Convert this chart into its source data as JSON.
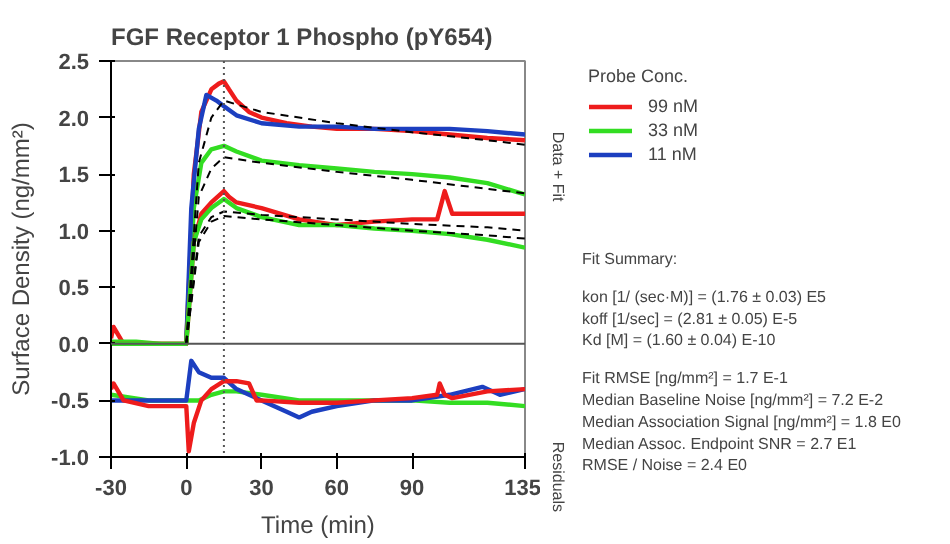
{
  "chart_data": {
    "type": "line",
    "title": "FGF Receptor 1 Phospho (pY654)",
    "xlabel": "Time (min)",
    "ylabel": "Surface Density (ng/mm²)",
    "legend_title": "Probe Conc.",
    "legend": "right",
    "grid": false,
    "marker": "none",
    "xlim": [
      -30,
      135
    ],
    "xticks": [
      -30,
      0,
      30,
      60,
      90,
      135
    ],
    "ylim": [
      -1.0,
      2.5
    ],
    "yticks": [
      {
        "value": -1.0,
        "label": "-1.0"
      },
      -0.5,
      {
        "value": 0,
        "label": "0.0"
      },
      0.5,
      {
        "value": 1.0,
        "label": "1.0"
      },
      1.5,
      {
        "value": 2.0,
        "label": "2.0"
      },
      2.5
    ],
    "series": [
      {
        "name": "99 nM",
        "color": "#ee1c1c",
        "x": [
          -30,
          -29,
          -25,
          -15,
          -5,
          0,
          3,
          6,
          10,
          13,
          15,
          17,
          20,
          25,
          30,
          40,
          50,
          60,
          75,
          90,
          105,
          120,
          135
        ],
        "values": [
          0.05,
          0.15,
          0.0,
          0.0,
          0.0,
          0.0,
          1.5,
          2.05,
          2.25,
          2.3,
          2.32,
          2.25,
          2.15,
          2.05,
          2.0,
          1.95,
          1.92,
          1.9,
          1.9,
          1.88,
          1.85,
          1.82,
          1.8
        ]
      },
      {
        "name": "33 nM",
        "color": "#33dd22",
        "x": [
          -30,
          -20,
          -10,
          0,
          3,
          6,
          10,
          15,
          20,
          30,
          45,
          60,
          75,
          90,
          105,
          120,
          135
        ],
        "values": [
          0.02,
          0.02,
          0.0,
          0.0,
          1.2,
          1.6,
          1.72,
          1.75,
          1.7,
          1.62,
          1.58,
          1.55,
          1.52,
          1.5,
          1.47,
          1.42,
          1.32
        ]
      },
      {
        "name": "11 nM",
        "color": "#1c3fc0",
        "x": [
          0,
          2,
          5,
          8,
          12,
          15,
          20,
          30,
          45,
          60,
          75,
          90,
          105,
          120,
          135
        ],
        "values": [
          0.0,
          1.2,
          1.9,
          2.2,
          2.15,
          2.1,
          2.02,
          1.95,
          1.92,
          1.92,
          1.9,
          1.9,
          1.9,
          1.88,
          1.85
        ]
      },
      {
        "color": "#ee1c1c",
        "x": [
          -30,
          -15,
          0,
          3,
          6,
          10,
          15,
          17,
          20,
          30,
          45,
          60,
          75,
          90,
          100,
          103,
          106,
          110,
          120,
          135
        ],
        "values": [
          0.0,
          0.0,
          0.0,
          0.9,
          1.15,
          1.25,
          1.35,
          1.3,
          1.25,
          1.2,
          1.1,
          1.05,
          1.08,
          1.1,
          1.1,
          1.35,
          1.15,
          1.15,
          1.15,
          1.15
        ]
      },
      {
        "color": "#33dd22",
        "x": [
          -30,
          -15,
          0,
          3,
          6,
          10,
          15,
          20,
          30,
          45,
          60,
          75,
          90,
          105,
          120,
          135
        ],
        "values": [
          0.0,
          0.0,
          0.0,
          0.9,
          1.1,
          1.2,
          1.28,
          1.2,
          1.12,
          1.05,
          1.05,
          1.02,
          1.0,
          0.97,
          0.92,
          0.85
        ]
      },
      {
        "color": "#000000",
        "line_style": "dashed",
        "x": [
          0,
          5,
          10,
          15,
          30,
          60,
          90,
          120,
          135
        ],
        "values": [
          0.0,
          1.6,
          2.0,
          2.15,
          2.05,
          1.95,
          1.87,
          1.8,
          1.76
        ]
      },
      {
        "color": "#000000",
        "line_style": "dashed",
        "x": [
          0,
          5,
          10,
          15,
          30,
          60,
          90,
          120,
          135
        ],
        "values": [
          0.0,
          1.3,
          1.55,
          1.65,
          1.6,
          1.52,
          1.45,
          1.37,
          1.33
        ]
      },
      {
        "color": "#000000",
        "line_style": "dashed",
        "x": [
          0,
          5,
          10,
          15,
          30,
          60,
          90,
          120,
          135
        ],
        "values": [
          0.0,
          0.95,
          1.12,
          1.17,
          1.14,
          1.1,
          1.06,
          1.03,
          1.0
        ]
      },
      {
        "color": "#000000",
        "line_style": "dashed",
        "x": [
          0,
          5,
          10,
          15,
          30,
          60,
          90,
          120,
          135
        ],
        "values": [
          0.0,
          0.9,
          1.08,
          1.13,
          1.1,
          1.05,
          1.0,
          0.96,
          0.93
        ]
      },
      {
        "color": "#33dd22",
        "x": [
          -30,
          -15,
          0,
          5,
          10,
          15,
          20,
          30,
          45,
          60,
          75,
          90,
          105,
          120,
          135
        ],
        "values": [
          -0.45,
          -0.5,
          -0.5,
          -0.5,
          -0.45,
          -0.42,
          -0.42,
          -0.45,
          -0.5,
          -0.5,
          -0.5,
          -0.5,
          -0.52,
          -0.52,
          -0.55
        ]
      },
      {
        "color": "#1c3fc0",
        "x": [
          -30,
          -15,
          0,
          2,
          5,
          10,
          15,
          20,
          30,
          40,
          45,
          50,
          60,
          75,
          90,
          105,
          118,
          125,
          135
        ],
        "values": [
          -0.5,
          -0.5,
          -0.5,
          -0.15,
          -0.25,
          -0.3,
          -0.3,
          -0.4,
          -0.5,
          -0.6,
          -0.65,
          -0.6,
          -0.55,
          -0.5,
          -0.5,
          -0.45,
          -0.38,
          -0.45,
          -0.4
        ]
      },
      {
        "color": "#ee1c1c",
        "x": [
          -30,
          -29,
          -25,
          -15,
          -5,
          0,
          1,
          3,
          6,
          10,
          15,
          20,
          25,
          28,
          30,
          45,
          60,
          75,
          90,
          100,
          101,
          103,
          106,
          120,
          135
        ],
        "values": [
          -0.4,
          -0.35,
          -0.5,
          -0.55,
          -0.55,
          -0.55,
          -0.95,
          -0.7,
          -0.5,
          -0.4,
          -0.33,
          -0.33,
          -0.35,
          -0.5,
          -0.5,
          -0.52,
          -0.52,
          -0.5,
          -0.48,
          -0.45,
          -0.35,
          -0.45,
          -0.48,
          -0.42,
          -0.4
        ]
      }
    ],
    "ref_lines": [
      {
        "axis": "x",
        "value": 15,
        "color": "#555555",
        "line_style": "dotted"
      },
      {
        "axis": "y",
        "value": 0,
        "color": "#555555"
      }
    ],
    "annotations": [
      "Data + Fit",
      "Residuals",
      "Fit Summary:",
      "kon  [1/ (sec·M)]  =   (1.76 ± 0.03) E5",
      "koff  [1/sec]  =   (2.81 ± 0.05) E-5",
      "Kd  [M]  =   (1.60 ± 0.04) E-10",
      "Fit RMSE [ng/mm²]  =   1.7 E-1",
      "Median Baseline Noise [ng/mm²]  =   7.2 E-2",
      "Median Association Signal [ng/mm²]  =   1.8 E0",
      "Median Assoc. Endpoint SNR  =   2.7 E1",
      "RMSE / Noise  =   2.4 E0"
    ]
  }
}
